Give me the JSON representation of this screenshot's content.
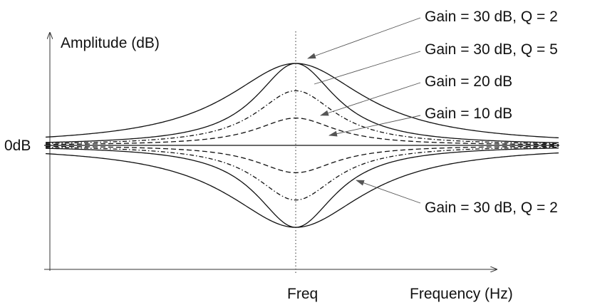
{
  "axes": {
    "y_label": "Amplitude (dB)",
    "x_label": "Frequency (Hz)",
    "zero_label": "0dB",
    "center_label": "Freq"
  },
  "annotations": [
    "Gain = 30 dB, Q = 2",
    "Gain = 30 dB, Q = 5",
    "Gain = 20 dB",
    "Gain = 10 dB",
    "Gain = 30 dB, Q = 2"
  ],
  "curves": [
    {
      "gain_db": 30,
      "q": 2,
      "style": "solid",
      "direction": "boost"
    },
    {
      "gain_db": 30,
      "q": 5,
      "style": "solid",
      "direction": "boost"
    },
    {
      "gain_db": 20,
      "q": 5,
      "style": "dash-dot",
      "direction": "boost"
    },
    {
      "gain_db": 10,
      "q": 5,
      "style": "dashed",
      "direction": "boost"
    },
    {
      "gain_db": 30,
      "q": 2,
      "style": "solid",
      "direction": "cut"
    },
    {
      "gain_db": 30,
      "q": 5,
      "style": "solid",
      "direction": "cut"
    },
    {
      "gain_db": 20,
      "q": 5,
      "style": "dash-dot",
      "direction": "cut"
    },
    {
      "gain_db": 10,
      "q": 5,
      "style": "dashed",
      "direction": "cut"
    }
  ]
}
